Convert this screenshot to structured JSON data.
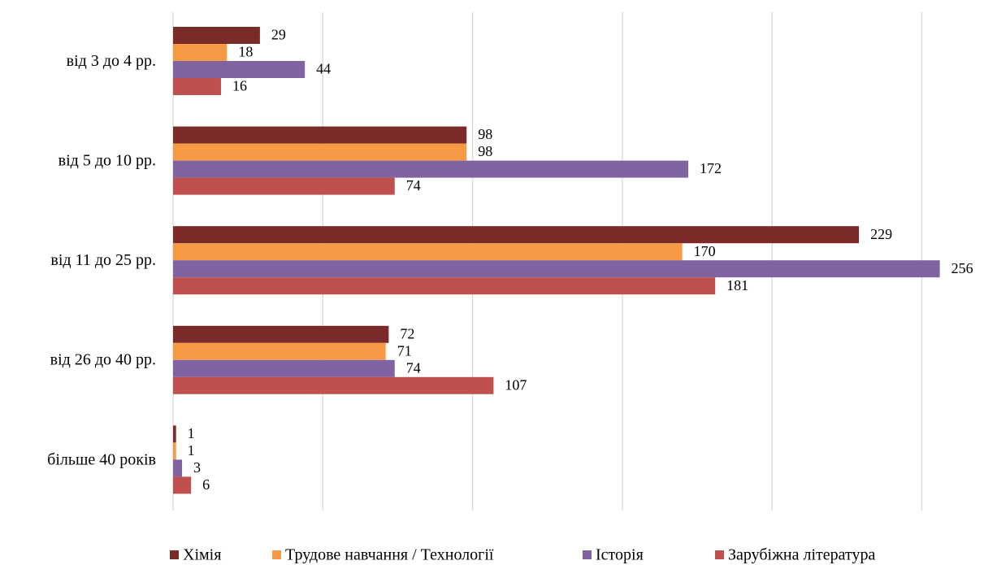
{
  "chart_data": {
    "type": "hbar",
    "categories": [
      "від 3 до 4 рр.",
      "від 5 до 10 рр.",
      "від 11 до 25 рр.",
      "від 26 до 40 рр.",
      "більше 40 років"
    ],
    "series": [
      {
        "name": "Хімія",
        "color": "#7b2a2a",
        "values": [
          29,
          98,
          229,
          72,
          1
        ]
      },
      {
        "name": "Трудове навчання / Технології",
        "color": "#f79a46",
        "values": [
          18,
          98,
          170,
          71,
          1
        ]
      },
      {
        "name": "Історія",
        "color": "#8064a2",
        "values": [
          44,
          172,
          256,
          74,
          3
        ]
      },
      {
        "name": "Зарубіжна література",
        "color": "#c0504d",
        "values": [
          16,
          74,
          181,
          107,
          6
        ]
      }
    ],
    "xlim": [
      0,
      260
    ],
    "xticks": [
      0,
      50,
      100,
      150,
      200,
      250
    ],
    "grid": true,
    "legend": "bottom"
  }
}
